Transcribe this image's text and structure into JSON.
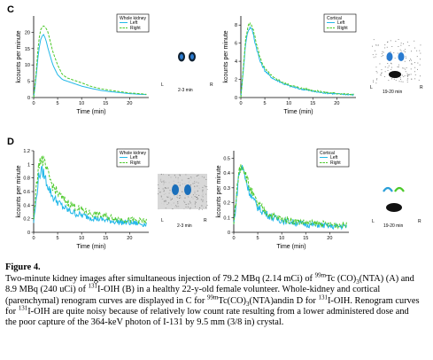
{
  "figure": {
    "title": "Figure 4.",
    "caption_parts": [
      {
        "t": "text",
        "v": "Two-minute kidney images after simultaneous injection of 79.2 MBq (2.14 mCi) of "
      },
      {
        "t": "sup",
        "v": "99m"
      },
      {
        "t": "text",
        "v": "Tc (CO)"
      },
      {
        "t": "sub",
        "v": "3"
      },
      {
        "t": "text",
        "v": "(NTA) (A) and 8.9 MBq (240 uCi) of "
      },
      {
        "t": "sup",
        "v": "131"
      },
      {
        "t": "text",
        "v": "I-OIH (B) in a healthy 22-y-old female volunteer. Whole-kidney and cortical (parenchymal) renogram curves are displayed in C for "
      },
      {
        "t": "sup",
        "v": "99m"
      },
      {
        "t": "text",
        "v": "Tc(CO)"
      },
      {
        "t": "sub",
        "v": "3"
      },
      {
        "t": "text",
        "v": "(NTA)andin D for "
      },
      {
        "t": "sup",
        "v": "131"
      },
      {
        "t": "text",
        "v": "I-OIH. Renogram curves for "
      },
      {
        "t": "sup",
        "v": "131"
      },
      {
        "t": "text",
        "v": "I-OIH are quite noisy because of relatively low count rate resulting from a lower administered dose and the poor capture of the 364-keV photon of I-131 by 9.5 mm (3/8 in) crystal."
      }
    ]
  },
  "panels": [
    {
      "letter": "C"
    },
    {
      "letter": "D"
    }
  ],
  "scans": [
    {
      "left": "L",
      "right": "R",
      "time": "2-3 min"
    },
    {
      "left": "L",
      "right": "R",
      "time": "19-20 min"
    },
    {
      "left": "L",
      "right": "R",
      "time": "2-3 min"
    },
    {
      "left": "L",
      "right": "R",
      "time": "19-20 min"
    }
  ],
  "colors": {
    "left": "#22b8e8",
    "right": "#4cc92a"
  },
  "chart_data": [
    {
      "type": "line",
      "id": "C-whole",
      "title": "Whole kidney",
      "xlabel": "Time (min)",
      "ylabel": "kcounts per minute",
      "xlim": [
        0,
        24
      ],
      "ylim": [
        0,
        25
      ],
      "xticks": [
        0,
        5,
        10,
        15,
        20
      ],
      "yticks": [
        0,
        5,
        10,
        15,
        20
      ],
      "noise": 0.0,
      "series": [
        {
          "name": "Left",
          "style": "solid",
          "x": [
            0,
            0.5,
            1,
            1.5,
            2,
            2.5,
            3,
            4,
            5,
            6,
            7,
            8,
            9,
            10,
            12,
            14,
            16,
            18,
            20,
            22,
            23.5
          ],
          "y": [
            0,
            6,
            14,
            18,
            19.5,
            18,
            15,
            10,
            7,
            5.5,
            5,
            4.5,
            4,
            3.5,
            2.8,
            2.2,
            1.8,
            1.5,
            1.2,
            1,
            0.9
          ]
        },
        {
          "name": "Right",
          "style": "dashed",
          "x": [
            0,
            0.5,
            1,
            1.5,
            2,
            2.5,
            3,
            4,
            5,
            6,
            7,
            8,
            9,
            10,
            12,
            14,
            16,
            18,
            20,
            22,
            23.5
          ],
          "y": [
            0,
            7,
            17,
            21,
            22,
            21.5,
            20,
            14,
            10,
            7,
            6,
            5.5,
            5,
            4.5,
            3.4,
            2.7,
            2.2,
            1.8,
            1.4,
            1.2,
            1
          ]
        }
      ]
    },
    {
      "type": "line",
      "id": "C-cortical",
      "title": "Cortical",
      "xlabel": "Time (min)",
      "ylabel": "kcounts per minute",
      "xlim": [
        0,
        24
      ],
      "ylim": [
        0,
        9
      ],
      "xticks": [
        0,
        5,
        10,
        15,
        20
      ],
      "yticks": [
        0,
        2,
        4,
        6,
        8
      ],
      "noise": 0.15,
      "series": [
        {
          "name": "Left",
          "style": "solid",
          "x": [
            0,
            0.5,
            1,
            1.5,
            2,
            2.5,
            3,
            4,
            5,
            6,
            7,
            8,
            9,
            10,
            12,
            14,
            16,
            18,
            20,
            22,
            23.5
          ],
          "y": [
            0,
            3,
            6,
            7.4,
            7.8,
            7.2,
            6,
            4,
            3,
            2.4,
            2,
            1.8,
            1.5,
            1.3,
            1,
            0.8,
            0.6,
            0.5,
            0.4,
            0.35,
            0.3
          ]
        },
        {
          "name": "Right",
          "style": "dashed",
          "x": [
            0,
            0.5,
            1,
            1.5,
            2,
            2.5,
            3,
            4,
            5,
            6,
            7,
            8,
            9,
            10,
            12,
            14,
            16,
            18,
            20,
            22,
            23.5
          ],
          "y": [
            0,
            3.2,
            6.5,
            7.8,
            8.1,
            7.6,
            6.5,
            4.4,
            3.2,
            2.6,
            2.1,
            1.9,
            1.6,
            1.4,
            1.1,
            0.9,
            0.7,
            0.55,
            0.45,
            0.4,
            0.35
          ]
        }
      ]
    },
    {
      "type": "line",
      "id": "D-whole",
      "title": "Whole kidney",
      "xlabel": "Time (min)",
      "ylabel": "kcounts per minute",
      "xlim": [
        0,
        24
      ],
      "ylim": [
        0,
        1.2
      ],
      "xticks": [
        0,
        5,
        10,
        15,
        20
      ],
      "yticks": [
        0,
        0.2,
        0.4,
        0.6,
        0.8,
        1.0,
        1.2
      ],
      "noise": 0.07,
      "series": [
        {
          "name": "Left",
          "style": "solid",
          "x": [
            0,
            0.5,
            1,
            1.5,
            2,
            2.5,
            3,
            4,
            5,
            6,
            7,
            8,
            9,
            10,
            12,
            14,
            16,
            18,
            20,
            22,
            23.5
          ],
          "y": [
            0.15,
            0.45,
            0.8,
            0.9,
            0.88,
            0.78,
            0.68,
            0.52,
            0.45,
            0.38,
            0.33,
            0.3,
            0.27,
            0.25,
            0.22,
            0.19,
            0.17,
            0.15,
            0.14,
            0.13,
            0.12
          ]
        },
        {
          "name": "Right",
          "style": "dashed",
          "x": [
            0,
            0.5,
            1,
            1.5,
            2,
            2.5,
            3,
            4,
            5,
            6,
            7,
            8,
            9,
            10,
            12,
            14,
            16,
            18,
            20,
            22,
            23.5
          ],
          "y": [
            0.2,
            0.6,
            1.0,
            1.08,
            1.05,
            0.95,
            0.85,
            0.68,
            0.58,
            0.5,
            0.44,
            0.4,
            0.36,
            0.33,
            0.28,
            0.25,
            0.22,
            0.2,
            0.18,
            0.17,
            0.16
          ]
        }
      ]
    },
    {
      "type": "line",
      "id": "D-cortical",
      "title": "Cortical",
      "xlabel": "Time (min)",
      "ylabel": "kcounts per minute",
      "xlim": [
        0,
        24
      ],
      "ylim": [
        0,
        0.55
      ],
      "xticks": [
        0,
        5,
        10,
        15,
        20
      ],
      "yticks": [
        0,
        0.1,
        0.2,
        0.3,
        0.4,
        0.5
      ],
      "noise": 0.035,
      "series": [
        {
          "name": "Left",
          "style": "solid",
          "x": [
            0,
            0.5,
            1,
            1.5,
            2,
            2.5,
            3,
            4,
            5,
            6,
            7,
            8,
            9,
            10,
            12,
            14,
            16,
            18,
            20,
            22,
            23.5
          ],
          "y": [
            0.05,
            0.2,
            0.38,
            0.44,
            0.42,
            0.36,
            0.3,
            0.22,
            0.17,
            0.14,
            0.12,
            0.1,
            0.09,
            0.08,
            0.07,
            0.06,
            0.05,
            0.05,
            0.04,
            0.04,
            0.04
          ]
        },
        {
          "name": "Right",
          "style": "dashed",
          "x": [
            0,
            0.5,
            1,
            1.5,
            2,
            2.5,
            3,
            4,
            5,
            6,
            7,
            8,
            9,
            10,
            12,
            14,
            16,
            18,
            20,
            22,
            23.5
          ],
          "y": [
            0.06,
            0.22,
            0.4,
            0.46,
            0.45,
            0.39,
            0.33,
            0.25,
            0.19,
            0.16,
            0.13,
            0.11,
            0.1,
            0.09,
            0.08,
            0.07,
            0.06,
            0.06,
            0.05,
            0.05,
            0.05
          ]
        }
      ]
    }
  ]
}
